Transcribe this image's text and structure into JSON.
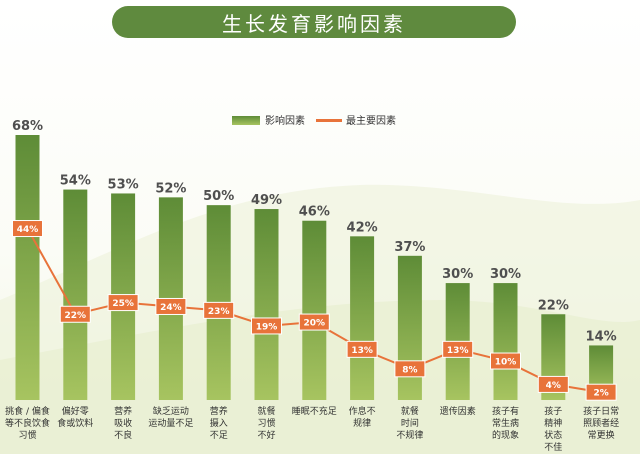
{
  "title": "生长发育影响因素",
  "colors": {
    "bar_top": "#5e8c37",
    "bar_bottom": "#a7c460",
    "line": "#e8733a",
    "marker": "#e8733a",
    "title_bg": "#5f8a3e"
  },
  "chart_data": {
    "type": "bar",
    "title": "生长发育影响因素",
    "legend_position": "top",
    "categories": [
      [
        "挑食 / 偏食",
        "等不良饮食",
        "习惯"
      ],
      [
        "偏好零",
        "食或饮料"
      ],
      [
        "营养",
        "吸收",
        "不良"
      ],
      [
        "缺乏运动",
        "运动量不足"
      ],
      [
        "营养",
        "摄入",
        "不足"
      ],
      [
        "就餐",
        "习惯",
        "不好"
      ],
      [
        "睡眠不充足"
      ],
      [
        "作息不",
        "规律"
      ],
      [
        "就餐",
        "时间",
        "不规律"
      ],
      [
        "遗传因素"
      ],
      [
        "孩子有",
        "常生病",
        "的现象"
      ],
      [
        "孩子",
        "精神",
        "状态",
        "不佳"
      ],
      [
        "孩子日常",
        "照顾者经",
        "常更换"
      ]
    ],
    "series": [
      {
        "name": "影响因素",
        "kind": "bar",
        "values": [
          68,
          54,
          53,
          52,
          50,
          49,
          46,
          42,
          37,
          30,
          30,
          22,
          14
        ],
        "labels": [
          "68%",
          "54%",
          "53%",
          "52%",
          "50%",
          "49%",
          "46%",
          "42%",
          "37%",
          "30%",
          "30%",
          "22%",
          "14%"
        ]
      },
      {
        "name": "最主要因素",
        "kind": "line",
        "values": [
          44,
          22,
          25,
          24,
          23,
          19,
          20,
          13,
          8,
          13,
          10,
          4,
          2
        ],
        "labels": [
          "44%",
          "22%",
          "25%",
          "24%",
          "23%",
          "19%",
          "20%",
          "13%",
          "8%",
          "13%",
          "10%",
          "4%",
          "2%"
        ]
      }
    ],
    "ylim": [
      0,
      68
    ],
    "grid": false
  }
}
